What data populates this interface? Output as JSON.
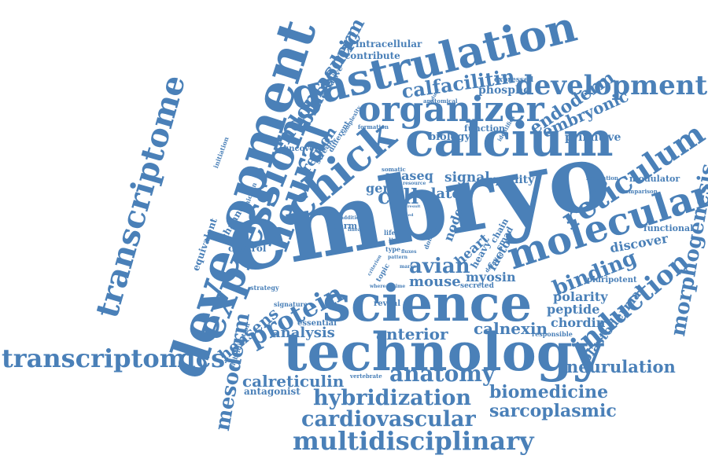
{
  "color": "#4a80b8",
  "words": [
    "embryo",
    "science",
    "technology",
    "development",
    "calcium",
    "gastrulation",
    "transcriptome",
    "expression",
    "chick",
    "organizer",
    "molecular",
    "neural",
    "developmental",
    "reticulum",
    "transcriptomics",
    "multidisciplinary",
    "cardiovascular",
    "hybridization",
    "induction",
    "biomedicine",
    "sarcoplasmic",
    "morphogenesis",
    "anatomy",
    "endoplasmic",
    "blastoderm",
    "neurulation",
    "mesoderm",
    "protein",
    "binding",
    "calfacilitin",
    "endoderm",
    "embryonic",
    "cell",
    "avian",
    "calreticulin",
    "hensens",
    "analysis",
    "anterior",
    "calnexin",
    "blastodermal",
    "signal",
    "mouse",
    "plate",
    "gene",
    "rnaseq",
    "region",
    "heart",
    "chordin",
    "polarity",
    "peptide",
    "myosin",
    "node",
    "factor",
    "smad",
    "discover",
    "germ",
    "quality",
    "biology",
    "function",
    "primitive",
    "phospho",
    "contribute",
    "intracellular",
    "uncover",
    "antagonist",
    "control",
    "equivalent",
    "channel",
    "modulator",
    "functional",
    "pluripotent",
    "reveal",
    "essential",
    "secreted",
    "heavy",
    "chain",
    "signature",
    "strategy",
    "putative",
    "expressed",
    "anatomical",
    "topic",
    "responsible",
    "vertebrate",
    "hybridisation",
    "initiation",
    "chicken",
    "streak",
    "different",
    "complexity",
    "formation",
    "identifies",
    "regulation",
    "comparison",
    "somatic",
    "resource",
    "detailed",
    "domain",
    "increase",
    "addition",
    "lineage",
    "life",
    "line",
    "type",
    "fluxes",
    "pattern",
    "whereas",
    "time",
    "marker",
    "induce",
    "criterion",
    "result",
    "need",
    "atlas"
  ]
}
